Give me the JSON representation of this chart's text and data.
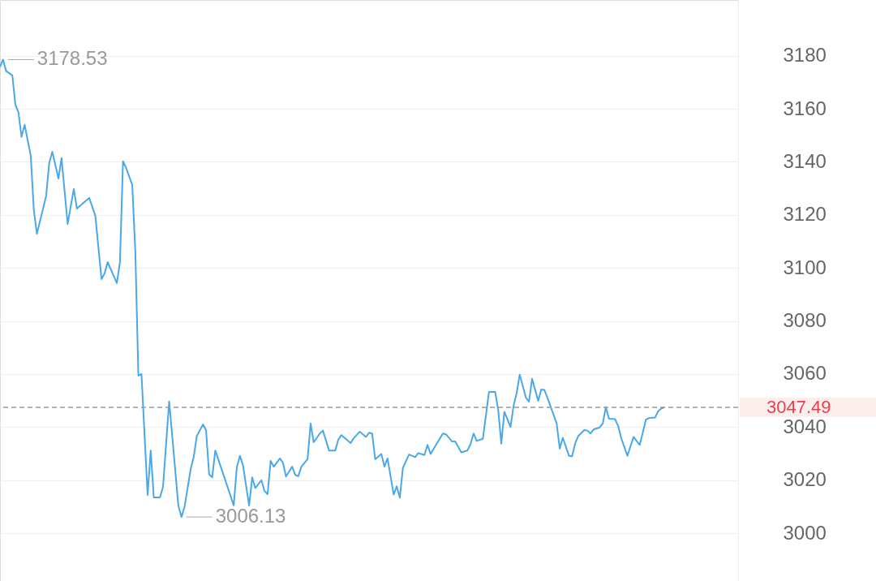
{
  "chart_data": {
    "type": "line",
    "categories": [
      null,
      null,
      null,
      null,
      null,
      null,
      null,
      null,
      null,
      null,
      null,
      null,
      null,
      null,
      null,
      null,
      null,
      null,
      null,
      null,
      null,
      null,
      null,
      null,
      null,
      null,
      null,
      null,
      null,
      null,
      null,
      null,
      null,
      null,
      null,
      null,
      null,
      null,
      null,
      null,
      null,
      null,
      null,
      null,
      null,
      null,
      null,
      null,
      null,
      null,
      null,
      null,
      null,
      null,
      null,
      null,
      null,
      null,
      null,
      null,
      null,
      null,
      null,
      null,
      null,
      null,
      null,
      null,
      null,
      null,
      null,
      null,
      null,
      null,
      null,
      null,
      null,
      null,
      null,
      null,
      null,
      null,
      null,
      null,
      null,
      null,
      null,
      null,
      null,
      null,
      null,
      null,
      null,
      null,
      null,
      null,
      null,
      null,
      null,
      null,
      null,
      null,
      null,
      null,
      null,
      null,
      null,
      null,
      null,
      null,
      null,
      null,
      null,
      null,
      null,
      null,
      null,
      null,
      null,
      null,
      null,
      null,
      null,
      null,
      null,
      null,
      null,
      null,
      null,
      null,
      null,
      null,
      null,
      null,
      null,
      null,
      null,
      null,
      null,
      null,
      null,
      null,
      null,
      null,
      null,
      null,
      null,
      null,
      null,
      null,
      null,
      null,
      null,
      null,
      null,
      null,
      null,
      null,
      null,
      null,
      null,
      null,
      null,
      null,
      null,
      null,
      null,
      null,
      null,
      null,
      null,
      null,
      null,
      null,
      null,
      null,
      null,
      null,
      null,
      null,
      null,
      null,
      null,
      null,
      null,
      null,
      null,
      null,
      null,
      null,
      null,
      null,
      null,
      null,
      null,
      null,
      null,
      null,
      null,
      null,
      null,
      null,
      null,
      null,
      null,
      null,
      null,
      null,
      null,
      null,
      null,
      null,
      null,
      null,
      null,
      null,
      null,
      null,
      null,
      null,
      null,
      null,
      null,
      null,
      null,
      null,
      null,
      null,
      null,
      null,
      null,
      null,
      null,
      null,
      null,
      null,
      null,
      null,
      null,
      null,
      null
    ],
    "series": [
      {
        "color": "#4aa8e8",
        "values": [
          3175.8,
          3178.53,
          3174.2,
          null,
          3172.6,
          3161.6,
          3158.6,
          3149.4,
          3154.0,
          null,
          3142.3,
          3121.8,
          3112.9,
          null,
          null,
          3127.1,
          3139.5,
          3143.8,
          null,
          3133.7,
          3141.4,
          null,
          3116.6,
          null,
          3129.8,
          3122.4,
          null,
          null,
          null,
          3126.4,
          null,
          3119.7,
          null,
          3095.8,
          3097.9,
          3102.2,
          null,
          null,
          3094.3,
          3102.2,
          3140.2,
          3137.7,
          null,
          3131.3,
          3106.2,
          3059.4,
          3060.0,
          null,
          3014.4,
          3031.2,
          3013.5,
          null,
          3013.5,
          3017.4,
          null,
          3049.7,
          null,
          null,
          3010.4,
          3006.13,
          3009.9,
          null,
          3024.2,
          3028.8,
          3036.7,
          null,
          3041.0,
          3038.9,
          3022.2,
          3021.1,
          3031.2,
          null,
          null,
          null,
          null,
          null,
          3010.5,
          3024.8,
          3029.2,
          3025.7,
          null,
          3010.4,
          3021.1,
          3017.0,
          null,
          3020.0,
          3015.9,
          3014.7,
          3027.3,
          3025.1,
          null,
          3028.2,
          3026.6,
          3021.4,
          null,
          3025.1,
          3022.0,
          3021.5,
          3025.1,
          null,
          3027.9,
          3041.4,
          3034.3,
          null,
          3037.6,
          3038.7,
          null,
          3031.2,
          null,
          3031.2,
          3035.3,
          3037.0,
          null,
          null,
          3034.0,
          3035.8,
          null,
          3038.3,
          null,
          3036.3,
          3037.9,
          3037.6,
          3027.9,
          null,
          3029.9,
          3025.1,
          3028.2,
          null,
          3014.6,
          3017.7,
          3013.4,
          3024.6,
          null,
          3029.7,
          null,
          3028.7,
          3030.2,
          null,
          3029.5,
          3033.3,
          3029.9,
          null,
          3033.8,
          null,
          3037.6,
          3037.3,
          null,
          3034.6,
          3034.6,
          null,
          3030.5,
          null,
          3031.2,
          3033.6,
          3037.6,
          3034.8,
          null,
          3035.6,
          null,
          3053.3,
          null,
          3053.3,
          3046.5,
          3033.8,
          3045.8,
          null,
          3040.1,
          3048.1,
          3052.9,
          3059.8,
          null,
          3051.1,
          3049.6,
          3058.2,
          null,
          3049.9,
          3054.2,
          3054.0,
          3051.1,
          null,
          null,
          3041.4,
          3031.9,
          3036.0,
          null,
          3029.2,
          3029.0,
          3033.8,
          3036.6,
          null,
          3038.9,
          3038.7,
          3037.6,
          3039.1,
          null,
          3039.9,
          3041.4,
          3047.5,
          3043.2,
          null,
          3043.0,
          3040.4,
          3035.8,
          null,
          3029.2,
          3032.8,
          3036.3,
          null,
          3033.3,
          3037.9,
          3042.8,
          3043.4,
          null,
          3043.6,
          3046.0,
          3047.0,
          3047.49,
          null,
          null,
          null,
          null,
          null,
          null,
          null,
          null,
          null,
          null,
          null,
          null,
          null,
          null,
          null,
          null,
          null,
          null,
          null,
          null,
          null,
          null,
          null,
          null
        ]
      }
    ],
    "ylim": [
      2982,
      3201
    ],
    "yticks": [
      3000,
      3020,
      3040,
      3060,
      3080,
      3100,
      3120,
      3140,
      3160,
      3180
    ],
    "grid": "y",
    "tick_labels": "y",
    "marker": "none",
    "line_style": "solid",
    "ref_lines": [
      {
        "axis": "y",
        "value": 3047.49,
        "label": "3047.49",
        "color": "#999999",
        "line_style": "dashed"
      }
    ],
    "annotations": [
      "3178.53",
      "3006.13"
    ]
  }
}
